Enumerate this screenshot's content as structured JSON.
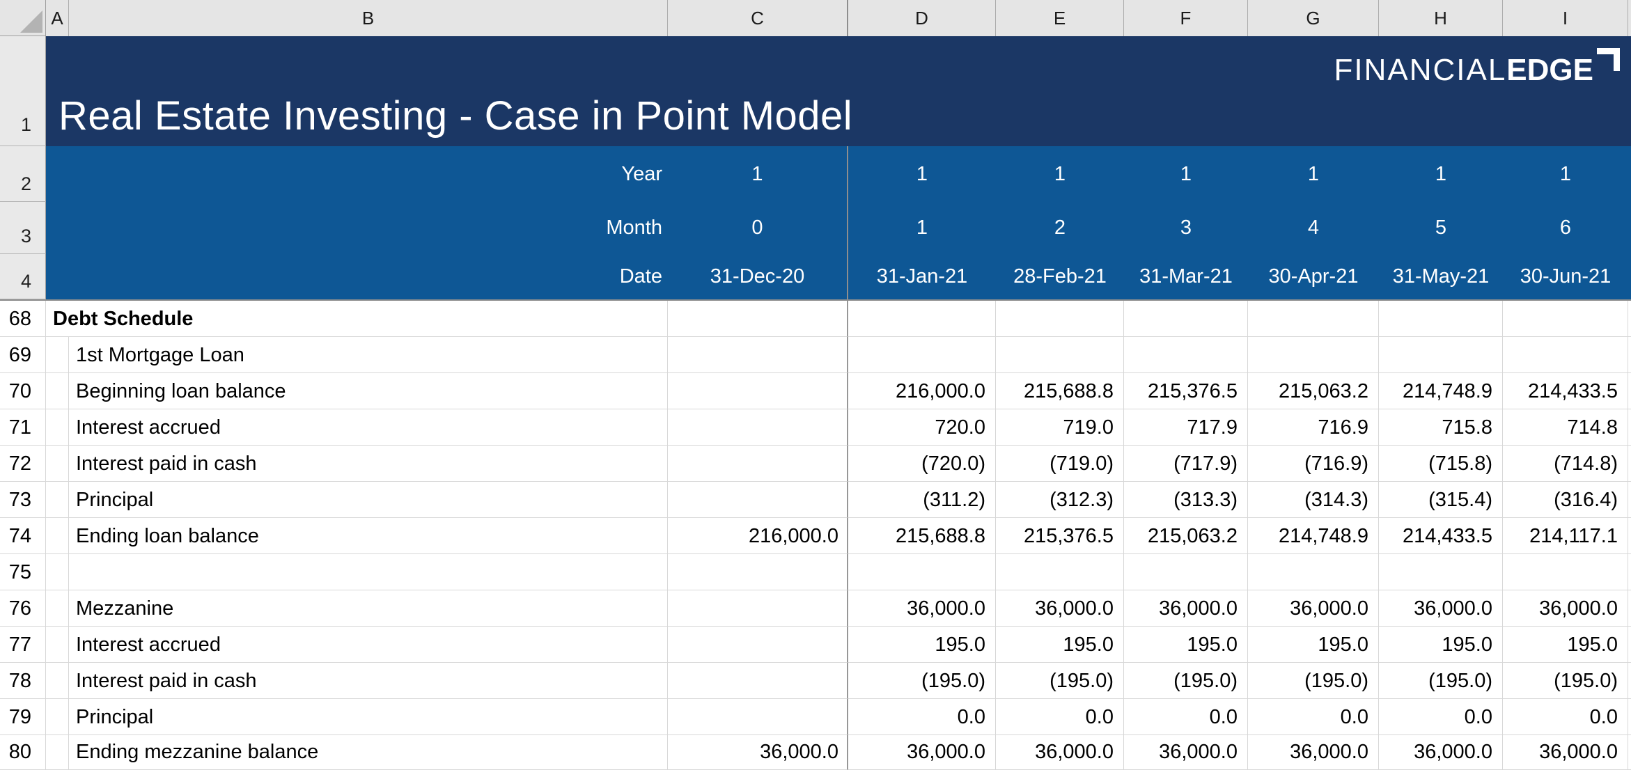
{
  "title": "Real Estate Investing - Case in Point Model",
  "logo": {
    "part1": "FINANCIAL",
    "part2": "EDGE"
  },
  "colors": {
    "banner_navy": "#1B3765",
    "frozen_blue": "#0E5795",
    "section_text": "#1B3765",
    "freeze_line": "#8E8E8E",
    "gridline": "#D8D8D8"
  },
  "column_headers": [
    "A",
    "B",
    "C",
    "D",
    "E",
    "F",
    "G",
    "H",
    "I"
  ],
  "header_row_nums": [
    "1",
    "2",
    "3",
    "4"
  ],
  "frozen_header": {
    "year": {
      "label": "Year",
      "values": [
        "1",
        "1",
        "1",
        "1",
        "1",
        "1",
        "1"
      ]
    },
    "month": {
      "label": "Month",
      "values": [
        "0",
        "1",
        "2",
        "3",
        "4",
        "5",
        "6"
      ]
    },
    "date": {
      "label": "Date",
      "values": [
        "31-Dec-20",
        "31-Jan-21",
        "28-Feb-21",
        "31-Mar-21",
        "30-Apr-21",
        "31-May-21",
        "30-Jun-21"
      ]
    }
  },
  "rows": [
    {
      "num": "68",
      "label": "Debt Schedule",
      "c": "",
      "values": [
        "",
        "",
        "",
        "",
        "",
        ""
      ]
    },
    {
      "num": "69",
      "label": "1st Mortgage Loan",
      "c": "",
      "values": [
        "",
        "",
        "",
        "",
        "",
        ""
      ]
    },
    {
      "num": "70",
      "label": "Beginning loan balance",
      "c": "",
      "values": [
        "216,000.0",
        "215,688.8",
        "215,376.5",
        "215,063.2",
        "214,748.9",
        "214,433.5"
      ]
    },
    {
      "num": "71",
      "label": "Interest accrued",
      "c": "",
      "values": [
        "720.0",
        "719.0",
        "717.9",
        "716.9",
        "715.8",
        "714.8"
      ]
    },
    {
      "num": "72",
      "label": "Interest paid in cash",
      "c": "",
      "values": [
        "(720.0)",
        "(719.0)",
        "(717.9)",
        "(716.9)",
        "(715.8)",
        "(714.8)"
      ]
    },
    {
      "num": "73",
      "label": "Principal",
      "c": "",
      "values": [
        "(311.2)",
        "(312.3)",
        "(313.3)",
        "(314.3)",
        "(315.4)",
        "(316.4)"
      ]
    },
    {
      "num": "74",
      "label": "Ending loan balance",
      "c": "216,000.0",
      "values": [
        "215,688.8",
        "215,376.5",
        "215,063.2",
        "214,748.9",
        "214,433.5",
        "214,117.1"
      ]
    },
    {
      "num": "75",
      "label": "",
      "c": "",
      "values": [
        "",
        "",
        "",
        "",
        "",
        ""
      ]
    },
    {
      "num": "76",
      "label": "Mezzanine",
      "c": "",
      "values": [
        "36,000.0",
        "36,000.0",
        "36,000.0",
        "36,000.0",
        "36,000.0",
        "36,000.0"
      ]
    },
    {
      "num": "77",
      "label": "Interest accrued",
      "c": "",
      "values": [
        "195.0",
        "195.0",
        "195.0",
        "195.0",
        "195.0",
        "195.0"
      ]
    },
    {
      "num": "78",
      "label": "Interest paid in cash",
      "c": "",
      "values": [
        "(195.0)",
        "(195.0)",
        "(195.0)",
        "(195.0)",
        "(195.0)",
        "(195.0)"
      ]
    },
    {
      "num": "79",
      "label": "Principal",
      "c": "",
      "values": [
        "0.0",
        "0.0",
        "0.0",
        "0.0",
        "0.0",
        "0.0"
      ]
    },
    {
      "num": "80",
      "label": "Ending mezzanine balance",
      "c": "36,000.0",
      "values": [
        "36,000.0",
        "36,000.0",
        "36,000.0",
        "36,000.0",
        "36,000.0",
        "36,000.0"
      ]
    }
  ]
}
